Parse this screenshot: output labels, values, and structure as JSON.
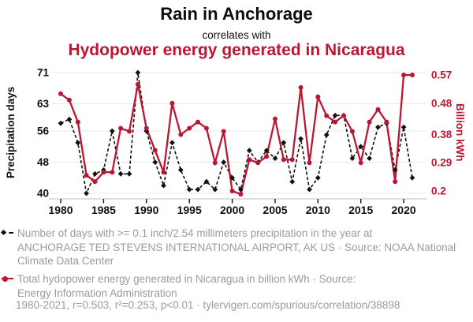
{
  "header": {
    "title": "Rain in Anchorage",
    "connector": "correlates with",
    "subtitle": "Hydopower energy generated in Nicaragua"
  },
  "colors": {
    "accent_red": "#bb1733",
    "series_black": "#111111",
    "legend_gray": "#9b9b9b",
    "gridline": "#e8e8e8",
    "axis_line": "#cccccc"
  },
  "chart_data": {
    "type": "line",
    "title": "Rain in Anchorage",
    "subtitle": "Hydopower energy generated in Nicaragua",
    "x_range": [
      1980,
      2021
    ],
    "x": [
      1980,
      1981,
      1982,
      1983,
      1984,
      1985,
      1986,
      1987,
      1988,
      1989,
      1990,
      1991,
      1992,
      1993,
      1994,
      1995,
      1996,
      1997,
      1998,
      1999,
      2000,
      2001,
      2002,
      2003,
      2004,
      2005,
      2006,
      2007,
      2008,
      2009,
      2010,
      2011,
      2012,
      2013,
      2014,
      2015,
      2016,
      2017,
      2018,
      2019,
      2020,
      2021
    ],
    "x_ticks": [
      1980,
      1985,
      1990,
      1995,
      2000,
      2005,
      2010,
      2015,
      2020
    ],
    "grid": "horizontal",
    "legend_position": "bottom",
    "left_axis": {
      "title": "Precipitation days",
      "ticks": [
        40,
        48,
        56,
        63,
        71
      ],
      "tick_labels": [
        "40",
        "48",
        "56",
        "63",
        "71"
      ],
      "range": [
        40,
        71
      ],
      "color": "#111111"
    },
    "right_axis": {
      "title": "Billion kWh",
      "ticks": [
        0.2,
        0.29,
        0.38,
        0.48,
        0.57
      ],
      "tick_labels": [
        "0.2",
        "0.29",
        "0.38",
        "0.48",
        "0.57"
      ],
      "range": [
        0.2,
        0.57
      ],
      "color": "#bb1733"
    },
    "series": [
      {
        "name": "Number of days with >= 0.1 inch/2.54 millimeters precipitation in the year at ANCHORAGE TED STEVENS INTERNATIONAL AIRPORT, AK US",
        "axis": "left",
        "color": "#111111",
        "line_style": "dashed",
        "marker": "diamond",
        "values": [
          58,
          59,
          53,
          40,
          45,
          46,
          56,
          45,
          45,
          71,
          56,
          48,
          42,
          53,
          46,
          41,
          41,
          43,
          41,
          48,
          44,
          41,
          51,
          48,
          51,
          49,
          53,
          43,
          54,
          41,
          44,
          55,
          60,
          60,
          49,
          52,
          49,
          57,
          58,
          46,
          57,
          44
        ]
      },
      {
        "name": "Total hydopower energy generated in Nicaragua in billion kWh",
        "axis": "right",
        "color": "#bb1733",
        "line_style": "solid",
        "marker": "circle",
        "values": [
          0.51,
          0.49,
          0.42,
          0.25,
          0.23,
          0.26,
          0.26,
          0.4,
          0.39,
          0.54,
          0.4,
          0.33,
          0.26,
          0.48,
          0.38,
          0.4,
          0.42,
          0.4,
          0.29,
          0.39,
          0.2,
          0.19,
          0.3,
          0.29,
          0.31,
          0.43,
          0.3,
          0.3,
          0.53,
          0.29,
          0.5,
          0.44,
          0.42,
          0.44,
          0.39,
          0.29,
          0.42,
          0.46,
          0.42,
          0.23,
          0.57,
          0.57
        ]
      }
    ]
  },
  "legend": {
    "precipitation": {
      "full_text": "Number of days with >= 0.1 inch/2.54 millimeters precipitation in the year at ANCHORAGE TED STEVENS INTERNATIONAL AIRPORT, AK US · Source: NOAA National Climate Data Center",
      "lines": [
        "Number of days with >= 0.1 inch/2.54 millimeters precipitation in the year at",
        "ANCHORAGE TED STEVENS INTERNATIONAL AIRPORT, AK US · Source: NOAA National",
        "Climate Data Center"
      ]
    },
    "hydropower": {
      "full_text": "Total hydopower energy generated in Nicaragua in billion kWh · Source: Energy Information Administration",
      "lines": [
        "Total hydopower energy generated in Nicaragua in billion kWh · Source:",
        "Energy Information Administration"
      ]
    }
  },
  "footer": {
    "text": "1980-2021, r=0.503, r²=0.253, p<0.01 · tylervigen.com/spurious/correlation/38898"
  }
}
